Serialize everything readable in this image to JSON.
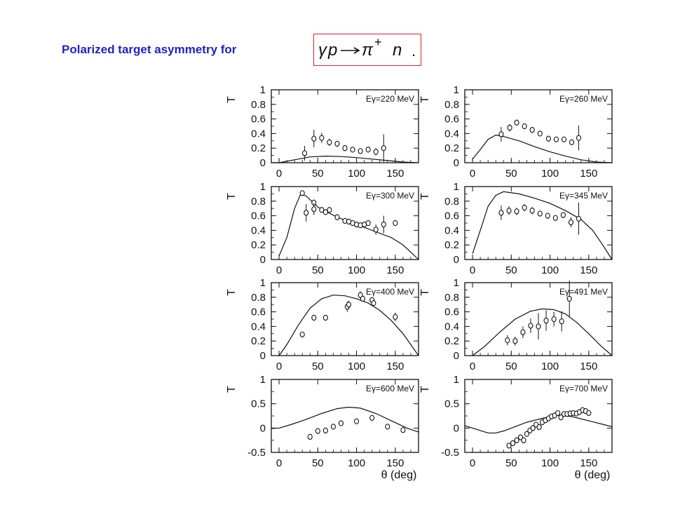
{
  "title": "Polarized target asymmetry for",
  "formula": {
    "text": "γp → π⁺ n .",
    "gamma": "γ",
    "p": "p",
    "pi": "π",
    "plus": "+",
    "n": "n",
    "dot": "."
  },
  "colors": {
    "title": "#1f1fd0",
    "box_border": "#dd2222",
    "ink": "#111111"
  },
  "chart_data": [
    {
      "type": "scatter",
      "label": "Eγ=220 MeV",
      "ylabel": "T",
      "xlabel": "",
      "xlim": [
        -10,
        180
      ],
      "ylim": [
        0,
        1
      ],
      "yticks": [
        "0",
        "0.2",
        "0.4",
        "0.6",
        "0.8",
        "1"
      ],
      "xticks": [
        "0",
        "50",
        "100",
        "150"
      ],
      "points": [
        {
          "x": 33,
          "y": 0.13,
          "err": 0.1
        },
        {
          "x": 45,
          "y": 0.33,
          "err": 0.12
        },
        {
          "x": 55,
          "y": 0.34,
          "err": 0.07
        },
        {
          "x": 65,
          "y": 0.28,
          "err": 0.05
        },
        {
          "x": 75,
          "y": 0.26,
          "err": 0.04
        },
        {
          "x": 85,
          "y": 0.2,
          "err": 0.04
        },
        {
          "x": 95,
          "y": 0.18,
          "err": 0.03
        },
        {
          "x": 105,
          "y": 0.16,
          "err": 0.03
        },
        {
          "x": 115,
          "y": 0.18,
          "err": 0.04
        },
        {
          "x": 125,
          "y": 0.15,
          "err": 0.05
        },
        {
          "x": 135,
          "y": 0.2,
          "err": 0.19
        }
      ],
      "curve": [
        [
          -10,
          0
        ],
        [
          0,
          0
        ],
        [
          20,
          0.04
        ],
        [
          40,
          0.08
        ],
        [
          60,
          0.09
        ],
        [
          80,
          0.085
        ],
        [
          100,
          0.07
        ],
        [
          120,
          0.05
        ],
        [
          140,
          0.03
        ],
        [
          160,
          0.01
        ],
        [
          180,
          0
        ]
      ]
    },
    {
      "type": "scatter",
      "label": "Eγ=260 MeV",
      "ylabel": "T",
      "xlabel": "",
      "xlim": [
        -10,
        180
      ],
      "ylim": [
        0,
        1
      ],
      "yticks": [
        "0",
        "0.2",
        "0.4",
        "0.6",
        "0.8",
        "1"
      ],
      "xticks": [
        "0",
        "50",
        "100",
        "150"
      ],
      "points": [
        {
          "x": 37,
          "y": 0.39,
          "err": 0.1
        },
        {
          "x": 48,
          "y": 0.48,
          "err": 0.05
        },
        {
          "x": 57,
          "y": 0.55,
          "err": 0.04
        },
        {
          "x": 67,
          "y": 0.5,
          "err": 0.04
        },
        {
          "x": 77,
          "y": 0.45,
          "err": 0.04
        },
        {
          "x": 87,
          "y": 0.4,
          "err": 0.03
        },
        {
          "x": 98,
          "y": 0.33,
          "err": 0.03
        },
        {
          "x": 108,
          "y": 0.32,
          "err": 0.03
        },
        {
          "x": 118,
          "y": 0.32,
          "err": 0.03
        },
        {
          "x": 128,
          "y": 0.28,
          "err": 0.04
        },
        {
          "x": 137,
          "y": 0.34,
          "err": 0.17
        }
      ],
      "curve": [
        [
          0,
          0.05
        ],
        [
          10,
          0.18
        ],
        [
          20,
          0.32
        ],
        [
          30,
          0.38
        ],
        [
          40,
          0.36
        ],
        [
          60,
          0.3
        ],
        [
          80,
          0.22
        ],
        [
          100,
          0.15
        ],
        [
          120,
          0.09
        ],
        [
          140,
          0.04
        ],
        [
          160,
          0.01
        ],
        [
          180,
          0
        ]
      ]
    },
    {
      "type": "scatter",
      "label": "Eγ=300 MeV",
      "ylabel": "T",
      "xlabel": "",
      "xlim": [
        -10,
        180
      ],
      "ylim": [
        0,
        1
      ],
      "yticks": [
        "0",
        "0.2",
        "0.4",
        "0.6",
        "0.8",
        "1"
      ],
      "xticks": [
        "0",
        "50",
        "100",
        "150"
      ],
      "points": [
        {
          "x": 30,
          "y": 0.91,
          "err": 0.03
        },
        {
          "x": 35,
          "y": 0.64,
          "err": 0.12
        },
        {
          "x": 45,
          "y": 0.78,
          "err": 0.04
        },
        {
          "x": 45,
          "y": 0.69,
          "err": 0.08
        },
        {
          "x": 55,
          "y": 0.68,
          "err": 0.04
        },
        {
          "x": 60,
          "y": 0.65,
          "err": 0.04
        },
        {
          "x": 65,
          "y": 0.68,
          "err": 0.03
        },
        {
          "x": 75,
          "y": 0.58,
          "err": 0.04
        },
        {
          "x": 85,
          "y": 0.53,
          "err": 0.03
        },
        {
          "x": 90,
          "y": 0.52,
          "err": 0.03
        },
        {
          "x": 95,
          "y": 0.5,
          "err": 0.03
        },
        {
          "x": 100,
          "y": 0.48,
          "err": 0.03
        },
        {
          "x": 105,
          "y": 0.47,
          "err": 0.03
        },
        {
          "x": 110,
          "y": 0.48,
          "err": 0.03
        },
        {
          "x": 115,
          "y": 0.5,
          "err": 0.03
        },
        {
          "x": 125,
          "y": 0.41,
          "err": 0.07
        },
        {
          "x": 135,
          "y": 0.48,
          "err": 0.12
        },
        {
          "x": 150,
          "y": 0.5,
          "err": 0.04
        }
      ],
      "curve": [
        [
          0,
          0.05
        ],
        [
          10,
          0.3
        ],
        [
          20,
          0.7
        ],
        [
          28,
          0.9
        ],
        [
          35,
          0.87
        ],
        [
          50,
          0.72
        ],
        [
          75,
          0.58
        ],
        [
          100,
          0.48
        ],
        [
          125,
          0.38
        ],
        [
          145,
          0.3
        ],
        [
          160,
          0.2
        ],
        [
          172,
          0.08
        ],
        [
          180,
          0
        ]
      ]
    },
    {
      "type": "scatter",
      "label": "Eγ=345 MeV",
      "ylabel": "T",
      "xlabel": "",
      "xlim": [
        -10,
        180
      ],
      "ylim": [
        0,
        1
      ],
      "yticks": [
        "0",
        "0.2",
        "0.4",
        "0.6",
        "0.8",
        "1"
      ],
      "xticks": [
        "0",
        "50",
        "100",
        "150"
      ],
      "points": [
        {
          "x": 37,
          "y": 0.64,
          "err": 0.1
        },
        {
          "x": 47,
          "y": 0.67,
          "err": 0.06
        },
        {
          "x": 57,
          "y": 0.66,
          "err": 0.05
        },
        {
          "x": 67,
          "y": 0.71,
          "err": 0.05
        },
        {
          "x": 77,
          "y": 0.67,
          "err": 0.05
        },
        {
          "x": 87,
          "y": 0.63,
          "err": 0.04
        },
        {
          "x": 97,
          "y": 0.6,
          "err": 0.04
        },
        {
          "x": 107,
          "y": 0.57,
          "err": 0.04
        },
        {
          "x": 117,
          "y": 0.61,
          "err": 0.04
        },
        {
          "x": 127,
          "y": 0.51,
          "err": 0.07
        },
        {
          "x": 137,
          "y": 0.56,
          "err": 0.22
        }
      ],
      "curve": [
        [
          0,
          0.08
        ],
        [
          10,
          0.4
        ],
        [
          20,
          0.73
        ],
        [
          30,
          0.88
        ],
        [
          40,
          0.93
        ],
        [
          60,
          0.9
        ],
        [
          80,
          0.84
        ],
        [
          100,
          0.77
        ],
        [
          120,
          0.67
        ],
        [
          140,
          0.55
        ],
        [
          155,
          0.4
        ],
        [
          168,
          0.2
        ],
        [
          180,
          0
        ]
      ]
    },
    {
      "type": "scatter",
      "label": "Eγ=400 MeV",
      "ylabel": "T",
      "xlabel": "",
      "xlim": [
        -10,
        180
      ],
      "ylim": [
        0,
        1
      ],
      "yticks": [
        "0",
        "0.2",
        "0.4",
        "0.6",
        "0.8",
        "1"
      ],
      "xticks": [
        "0",
        "50",
        "100",
        "150"
      ],
      "points": [
        {
          "x": 30,
          "y": 0.29,
          "err": 0.03
        },
        {
          "x": 45,
          "y": 0.52,
          "err": 0.03
        },
        {
          "x": 60,
          "y": 0.52,
          "err": 0.03
        },
        {
          "x": 88,
          "y": 0.67,
          "err": 0.07
        },
        {
          "x": 90,
          "y": 0.7,
          "err": 0.05
        },
        {
          "x": 105,
          "y": 0.83,
          "err": 0.05
        },
        {
          "x": 108,
          "y": 0.78,
          "err": 0.04
        },
        {
          "x": 120,
          "y": 0.76,
          "err": 0.04
        },
        {
          "x": 122,
          "y": 0.72,
          "err": 0.04
        },
        {
          "x": 150,
          "y": 0.53,
          "err": 0.06
        }
      ],
      "curve": [
        [
          0,
          0
        ],
        [
          10,
          0.15
        ],
        [
          25,
          0.42
        ],
        [
          40,
          0.65
        ],
        [
          55,
          0.78
        ],
        [
          70,
          0.83
        ],
        [
          85,
          0.82
        ],
        [
          100,
          0.78
        ],
        [
          115,
          0.72
        ],
        [
          130,
          0.62
        ],
        [
          145,
          0.48
        ],
        [
          160,
          0.3
        ],
        [
          172,
          0.12
        ],
        [
          180,
          0
        ]
      ]
    },
    {
      "type": "scatter",
      "label": "Eγ=491 MeV",
      "ylabel": "T",
      "xlabel": "",
      "xlim": [
        -10,
        180
      ],
      "ylim": [
        0,
        1
      ],
      "yticks": [
        "0",
        "0.2",
        "0.4",
        "0.6",
        "0.8",
        "1"
      ],
      "xticks": [
        "0",
        "50",
        "100",
        "150"
      ],
      "points": [
        {
          "x": 45,
          "y": 0.21,
          "err": 0.07
        },
        {
          "x": 55,
          "y": 0.2,
          "err": 0.06
        },
        {
          "x": 65,
          "y": 0.32,
          "err": 0.08
        },
        {
          "x": 75,
          "y": 0.41,
          "err": 0.1
        },
        {
          "x": 85,
          "y": 0.4,
          "err": 0.18
        },
        {
          "x": 95,
          "y": 0.48,
          "err": 0.14
        },
        {
          "x": 105,
          "y": 0.5,
          "err": 0.1
        },
        {
          "x": 115,
          "y": 0.47,
          "err": 0.14
        },
        {
          "x": 125,
          "y": 0.78,
          "err": 0.25
        }
      ],
      "curve": [
        [
          0,
          0
        ],
        [
          15,
          0.12
        ],
        [
          35,
          0.32
        ],
        [
          55,
          0.5
        ],
        [
          75,
          0.61
        ],
        [
          90,
          0.64
        ],
        [
          105,
          0.63
        ],
        [
          120,
          0.57
        ],
        [
          135,
          0.45
        ],
        [
          150,
          0.3
        ],
        [
          165,
          0.14
        ],
        [
          180,
          0
        ]
      ]
    },
    {
      "type": "scatter",
      "label": "Eγ=600 MeV",
      "ylabel": "T",
      "xlabel": "",
      "xlim": [
        -10,
        180
      ],
      "ylim": [
        -0.5,
        1
      ],
      "yticks": [
        "-0.5",
        "0",
        "0.5",
        "1"
      ],
      "xticks": [
        "0",
        "50",
        "100",
        "150"
      ],
      "points": [
        {
          "x": 40,
          "y": -0.18,
          "err": 0.03
        },
        {
          "x": 50,
          "y": -0.06,
          "err": 0.03
        },
        {
          "x": 60,
          "y": -0.05,
          "err": 0.03
        },
        {
          "x": 70,
          "y": 0.03,
          "err": 0.03
        },
        {
          "x": 80,
          "y": 0.1,
          "err": 0.03
        },
        {
          "x": 100,
          "y": 0.14,
          "err": 0.03
        },
        {
          "x": 120,
          "y": 0.21,
          "err": 0.03
        },
        {
          "x": 140,
          "y": 0.03,
          "err": 0.03
        },
        {
          "x": 160,
          "y": -0.04,
          "err": 0.05
        }
      ],
      "curve": [
        [
          -10,
          -0.01
        ],
        [
          0,
          0
        ],
        [
          15,
          0.07
        ],
        [
          35,
          0.18
        ],
        [
          55,
          0.3
        ],
        [
          75,
          0.4
        ],
        [
          90,
          0.43
        ],
        [
          105,
          0.41
        ],
        [
          125,
          0.3
        ],
        [
          145,
          0.15
        ],
        [
          165,
          0.0
        ],
        [
          180,
          -0.08
        ]
      ]
    },
    {
      "type": "scatter",
      "label": "Eγ=700 MeV",
      "ylabel": "T",
      "xlabel": "θ (deg)",
      "xlim": [
        -10,
        180
      ],
      "ylim": [
        -0.5,
        1
      ],
      "yticks": [
        "-0.5",
        "0",
        "0.5",
        "1"
      ],
      "xticks": [
        "0",
        "50",
        "100",
        "150"
      ],
      "points": [
        {
          "x": 47,
          "y": -0.36,
          "err": 0.03
        },
        {
          "x": 52,
          "y": -0.31,
          "err": 0.03
        },
        {
          "x": 57,
          "y": -0.25,
          "err": 0.03
        },
        {
          "x": 62,
          "y": -0.19,
          "err": 0.03
        },
        {
          "x": 66,
          "y": -0.25,
          "err": 0.06
        },
        {
          "x": 70,
          "y": -0.12,
          "err": 0.03
        },
        {
          "x": 74,
          "y": -0.05,
          "err": 0.03
        },
        {
          "x": 78,
          "y": 0.0,
          "err": 0.03
        },
        {
          "x": 82,
          "y": 0.07,
          "err": 0.03
        },
        {
          "x": 86,
          "y": 0.02,
          "err": 0.03
        },
        {
          "x": 90,
          "y": 0.12,
          "err": 0.03
        },
        {
          "x": 94,
          "y": 0.16,
          "err": 0.03
        },
        {
          "x": 98,
          "y": 0.2,
          "err": 0.03
        },
        {
          "x": 102,
          "y": 0.24,
          "err": 0.03
        },
        {
          "x": 106,
          "y": 0.26,
          "err": 0.03
        },
        {
          "x": 110,
          "y": 0.31,
          "err": 0.03
        },
        {
          "x": 114,
          "y": 0.22,
          "err": 0.03
        },
        {
          "x": 118,
          "y": 0.29,
          "err": 0.03
        },
        {
          "x": 122,
          "y": 0.29,
          "err": 0.03
        },
        {
          "x": 126,
          "y": 0.3,
          "err": 0.03
        },
        {
          "x": 130,
          "y": 0.31,
          "err": 0.03
        },
        {
          "x": 134,
          "y": 0.3,
          "err": 0.03
        },
        {
          "x": 138,
          "y": 0.33,
          "err": 0.03
        },
        {
          "x": 142,
          "y": 0.37,
          "err": 0.03
        },
        {
          "x": 146,
          "y": 0.35,
          "err": 0.03
        },
        {
          "x": 150,
          "y": 0.31,
          "err": 0.03
        }
      ],
      "curve": [
        [
          -10,
          0.05
        ],
        [
          0,
          0
        ],
        [
          10,
          -0.05
        ],
        [
          20,
          -0.1
        ],
        [
          30,
          -0.1
        ],
        [
          40,
          -0.06
        ],
        [
          55,
          0.03
        ],
        [
          70,
          0.12
        ],
        [
          90,
          0.2
        ],
        [
          105,
          0.25
        ],
        [
          115,
          0.27
        ],
        [
          130,
          0.23
        ],
        [
          150,
          0.15
        ],
        [
          170,
          0.07
        ],
        [
          180,
          0.03
        ]
      ]
    }
  ]
}
